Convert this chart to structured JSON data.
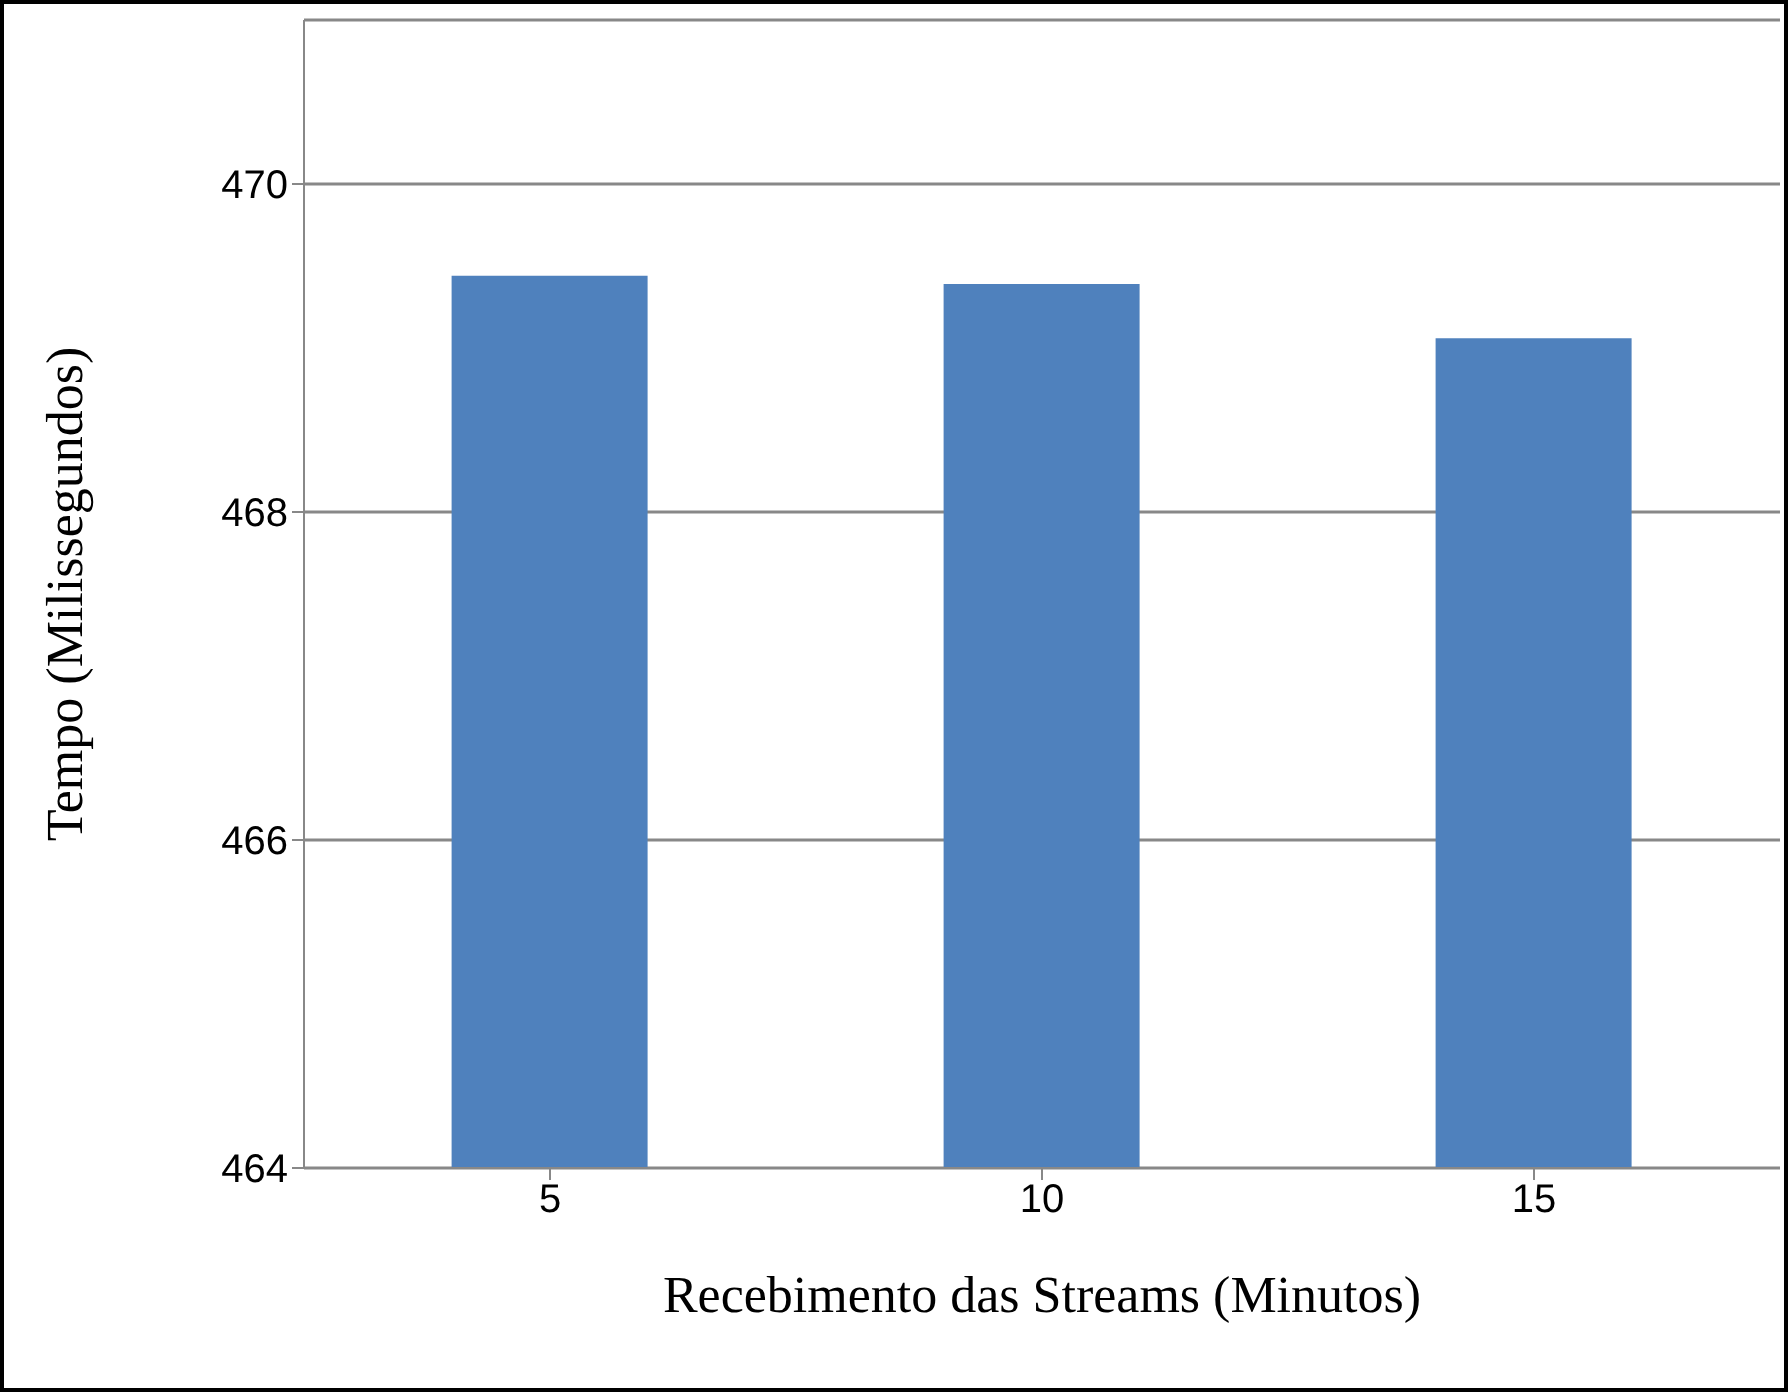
{
  "chart_data": {
    "type": "bar",
    "xlabel": "Recebimento das Streams (Minutos)",
    "ylabel": "Tempo (Milissegundos)",
    "categories": [
      "5",
      "10",
      "15"
    ],
    "values": [
      469.44,
      469.39,
      469.06
    ],
    "color": "#4f81bd",
    "ylim": [
      464,
      471
    ],
    "yticks": [
      464,
      466,
      468,
      470
    ],
    "grid": "y"
  }
}
